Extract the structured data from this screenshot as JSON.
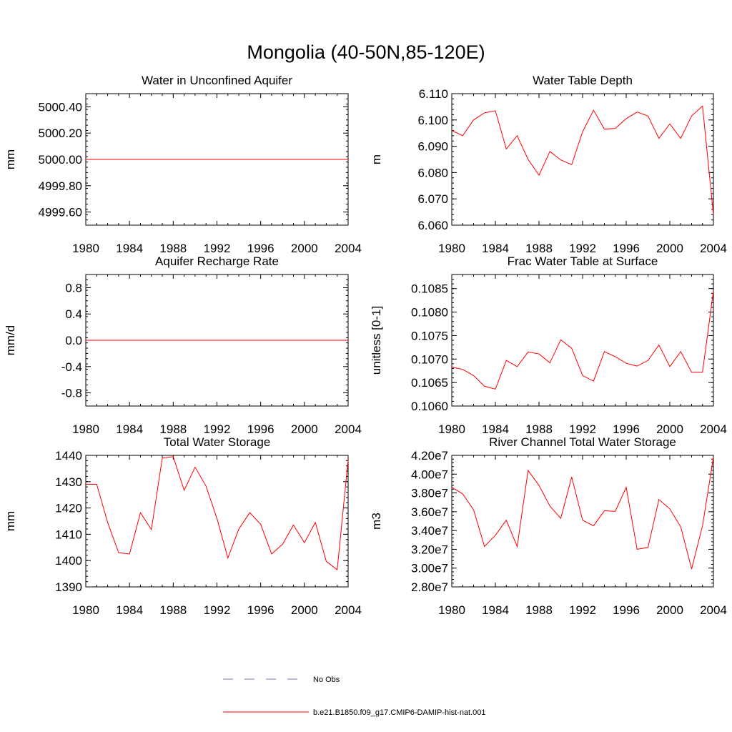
{
  "figure": {
    "title": "Mongolia (40-50N,85-120E)",
    "line_color": "#ff0000",
    "obs_color": "#7b7bc8"
  },
  "legend": {
    "obs_label": "No Obs",
    "model_label": "b.e21.B1850.f09_g17.CMIP6-DAMIP-hist-nat.001"
  },
  "chart_data": [
    {
      "type": "line",
      "title": "Water in Unconfined Aquifer",
      "ylabel": "mm",
      "xlim": [
        1980,
        2004
      ],
      "ylim": [
        4999.5,
        5000.5
      ],
      "xticks": [
        1980,
        1984,
        1988,
        1992,
        1996,
        2000,
        2004
      ],
      "yticks": [
        4999.6,
        4999.8,
        5000.0,
        5000.2,
        5000.4
      ],
      "ytick_labels": [
        "4999.60",
        "4999.80",
        "5000.00",
        "5000.20",
        "5000.40"
      ],
      "x": [
        1980,
        1981,
        1982,
        1983,
        1984,
        1985,
        1986,
        1987,
        1988,
        1989,
        1990,
        1991,
        1992,
        1993,
        1994,
        1995,
        1996,
        1997,
        1998,
        1999,
        2000,
        2001,
        2002,
        2003,
        2004
      ],
      "y": [
        5000,
        5000,
        5000,
        5000,
        5000,
        5000,
        5000,
        5000,
        5000,
        5000,
        5000,
        5000,
        5000,
        5000,
        5000,
        5000,
        5000,
        5000,
        5000,
        5000,
        5000,
        5000,
        5000,
        5000,
        5000
      ]
    },
    {
      "type": "line",
      "title": "Water Table Depth",
      "ylabel": "m",
      "xlim": [
        1980,
        2004
      ],
      "ylim": [
        6.06,
        6.11
      ],
      "xticks": [
        1980,
        1984,
        1988,
        1992,
        1996,
        2000,
        2004
      ],
      "yticks": [
        6.06,
        6.07,
        6.08,
        6.09,
        6.1,
        6.11
      ],
      "ytick_labels": [
        "6.060",
        "6.070",
        "6.080",
        "6.090",
        "6.100",
        "6.110"
      ],
      "x": [
        1980,
        1981,
        1982,
        1983,
        1984,
        1985,
        1986,
        1987,
        1988,
        1989,
        1990,
        1991,
        1992,
        1993,
        1994,
        1995,
        1996,
        1997,
        1998,
        1999,
        2000,
        2001,
        2002,
        2003,
        2004
      ],
      "y": [
        6.096,
        6.094,
        6.1,
        6.1027,
        6.1035,
        6.089,
        6.094,
        6.085,
        6.079,
        6.088,
        6.0848,
        6.083,
        6.0955,
        6.1037,
        6.0965,
        6.0968,
        6.1005,
        6.103,
        6.1015,
        6.093,
        6.0985,
        6.093,
        6.1015,
        6.1053,
        6.064
      ]
    },
    {
      "type": "line",
      "title": "Aquifer Recharge Rate",
      "ylabel": "mm/d",
      "xlim": [
        1980,
        2004
      ],
      "ylim": [
        -1,
        1
      ],
      "xticks": [
        1980,
        1984,
        1988,
        1992,
        1996,
        2000,
        2004
      ],
      "yticks": [
        -0.8,
        -0.4,
        0.0,
        0.4,
        0.8
      ],
      "ytick_labels": [
        "-0.8",
        "-0.4",
        "0.0",
        "0.4",
        "0.8"
      ],
      "x": [
        1980,
        1981,
        1982,
        1983,
        1984,
        1985,
        1986,
        1987,
        1988,
        1989,
        1990,
        1991,
        1992,
        1993,
        1994,
        1995,
        1996,
        1997,
        1998,
        1999,
        2000,
        2001,
        2002,
        2003,
        2004
      ],
      "y": [
        0,
        0,
        0,
        0,
        0,
        0,
        0,
        0,
        0,
        0,
        0,
        0,
        0,
        0,
        0,
        0,
        0,
        0,
        0,
        0,
        0,
        0,
        0,
        0,
        0
      ]
    },
    {
      "type": "line",
      "title": "Frac Water Table at Surface",
      "ylabel": "unitless [0-1]",
      "xlim": [
        1980,
        2004
      ],
      "ylim": [
        0.106,
        0.1088
      ],
      "xticks": [
        1980,
        1984,
        1988,
        1992,
        1996,
        2000,
        2004
      ],
      "yticks": [
        0.106,
        0.1065,
        0.107,
        0.1075,
        0.108,
        0.1085
      ],
      "ytick_labels": [
        "0.1060",
        "0.1065",
        "0.1070",
        "0.1075",
        "0.1080",
        "0.1085"
      ],
      "x": [
        1980,
        1981,
        1982,
        1983,
        1984,
        1985,
        1986,
        1987,
        1988,
        1989,
        1990,
        1991,
        1992,
        1993,
        1994,
        1995,
        1996,
        1997,
        1998,
        1999,
        2000,
        2001,
        2002,
        2003,
        2004
      ],
      "y": [
        0.10683,
        0.10678,
        0.10665,
        0.10642,
        0.10636,
        0.10697,
        0.10684,
        0.10715,
        0.10711,
        0.10692,
        0.10741,
        0.10723,
        0.10665,
        0.10653,
        0.10716,
        0.10705,
        0.10691,
        0.10685,
        0.10697,
        0.1073,
        0.10684,
        0.10716,
        0.10672,
        0.10672,
        0.10845
      ]
    },
    {
      "type": "line",
      "title": "Total Water Storage",
      "ylabel": "mm",
      "xlim": [
        1980,
        2004
      ],
      "ylim": [
        1390,
        1440
      ],
      "xticks": [
        1980,
        1984,
        1988,
        1992,
        1996,
        2000,
        2004
      ],
      "yticks": [
        1390,
        1400,
        1410,
        1420,
        1430,
        1440
      ],
      "ytick_labels": [
        "1390",
        "1400",
        "1410",
        "1420",
        "1430",
        "1440"
      ],
      "x": [
        1980,
        1981,
        1982,
        1983,
        1984,
        1985,
        1986,
        1987,
        1988,
        1989,
        1990,
        1991,
        1992,
        1993,
        1994,
        1995,
        1996,
        1997,
        1998,
        1999,
        2000,
        2001,
        2002,
        2003,
        2004
      ],
      "y": [
        1429,
        1429,
        1414.5,
        1403,
        1402.5,
        1418.2,
        1411.8,
        1439,
        1439.5,
        1426.7,
        1435.5,
        1428.3,
        1416,
        1401,
        1412,
        1418.2,
        1413.8,
        1402.5,
        1406.2,
        1413.5,
        1406.8,
        1414.5,
        1399.7,
        1396.5,
        1438.3
      ]
    },
    {
      "type": "line",
      "title": "River Channel Total Water Storage",
      "ylabel": "m3",
      "xlim": [
        1980,
        2004
      ],
      "ylim": [
        28000000,
        42000000
      ],
      "xticks": [
        1980,
        1984,
        1988,
        1992,
        1996,
        2000,
        2004
      ],
      "yticks": [
        28000000,
        30000000,
        32000000,
        34000000,
        36000000,
        38000000,
        40000000,
        42000000
      ],
      "ytick_labels": [
        "2.80e7",
        "3.00e7",
        "3.20e7",
        "3.40e7",
        "3.60e7",
        "3.80e7",
        "4.00e7",
        "4.20e7"
      ],
      "x": [
        1980,
        1981,
        1982,
        1983,
        1984,
        1985,
        1986,
        1987,
        1988,
        1989,
        1990,
        1991,
        1992,
        1993,
        1994,
        1995,
        1996,
        1997,
        1998,
        1999,
        2000,
        2001,
        2002,
        2003,
        2004
      ],
      "y": [
        38600000,
        37900000,
        36200000,
        32300000,
        33500000,
        35100000,
        32300000,
        40400000,
        38800000,
        36600000,
        35300000,
        39700000,
        35100000,
        34500000,
        36100000,
        36050000,
        38600000,
        32000000,
        32200000,
        37300000,
        36300000,
        34400000,
        29900000,
        34500000,
        41800000
      ]
    }
  ]
}
